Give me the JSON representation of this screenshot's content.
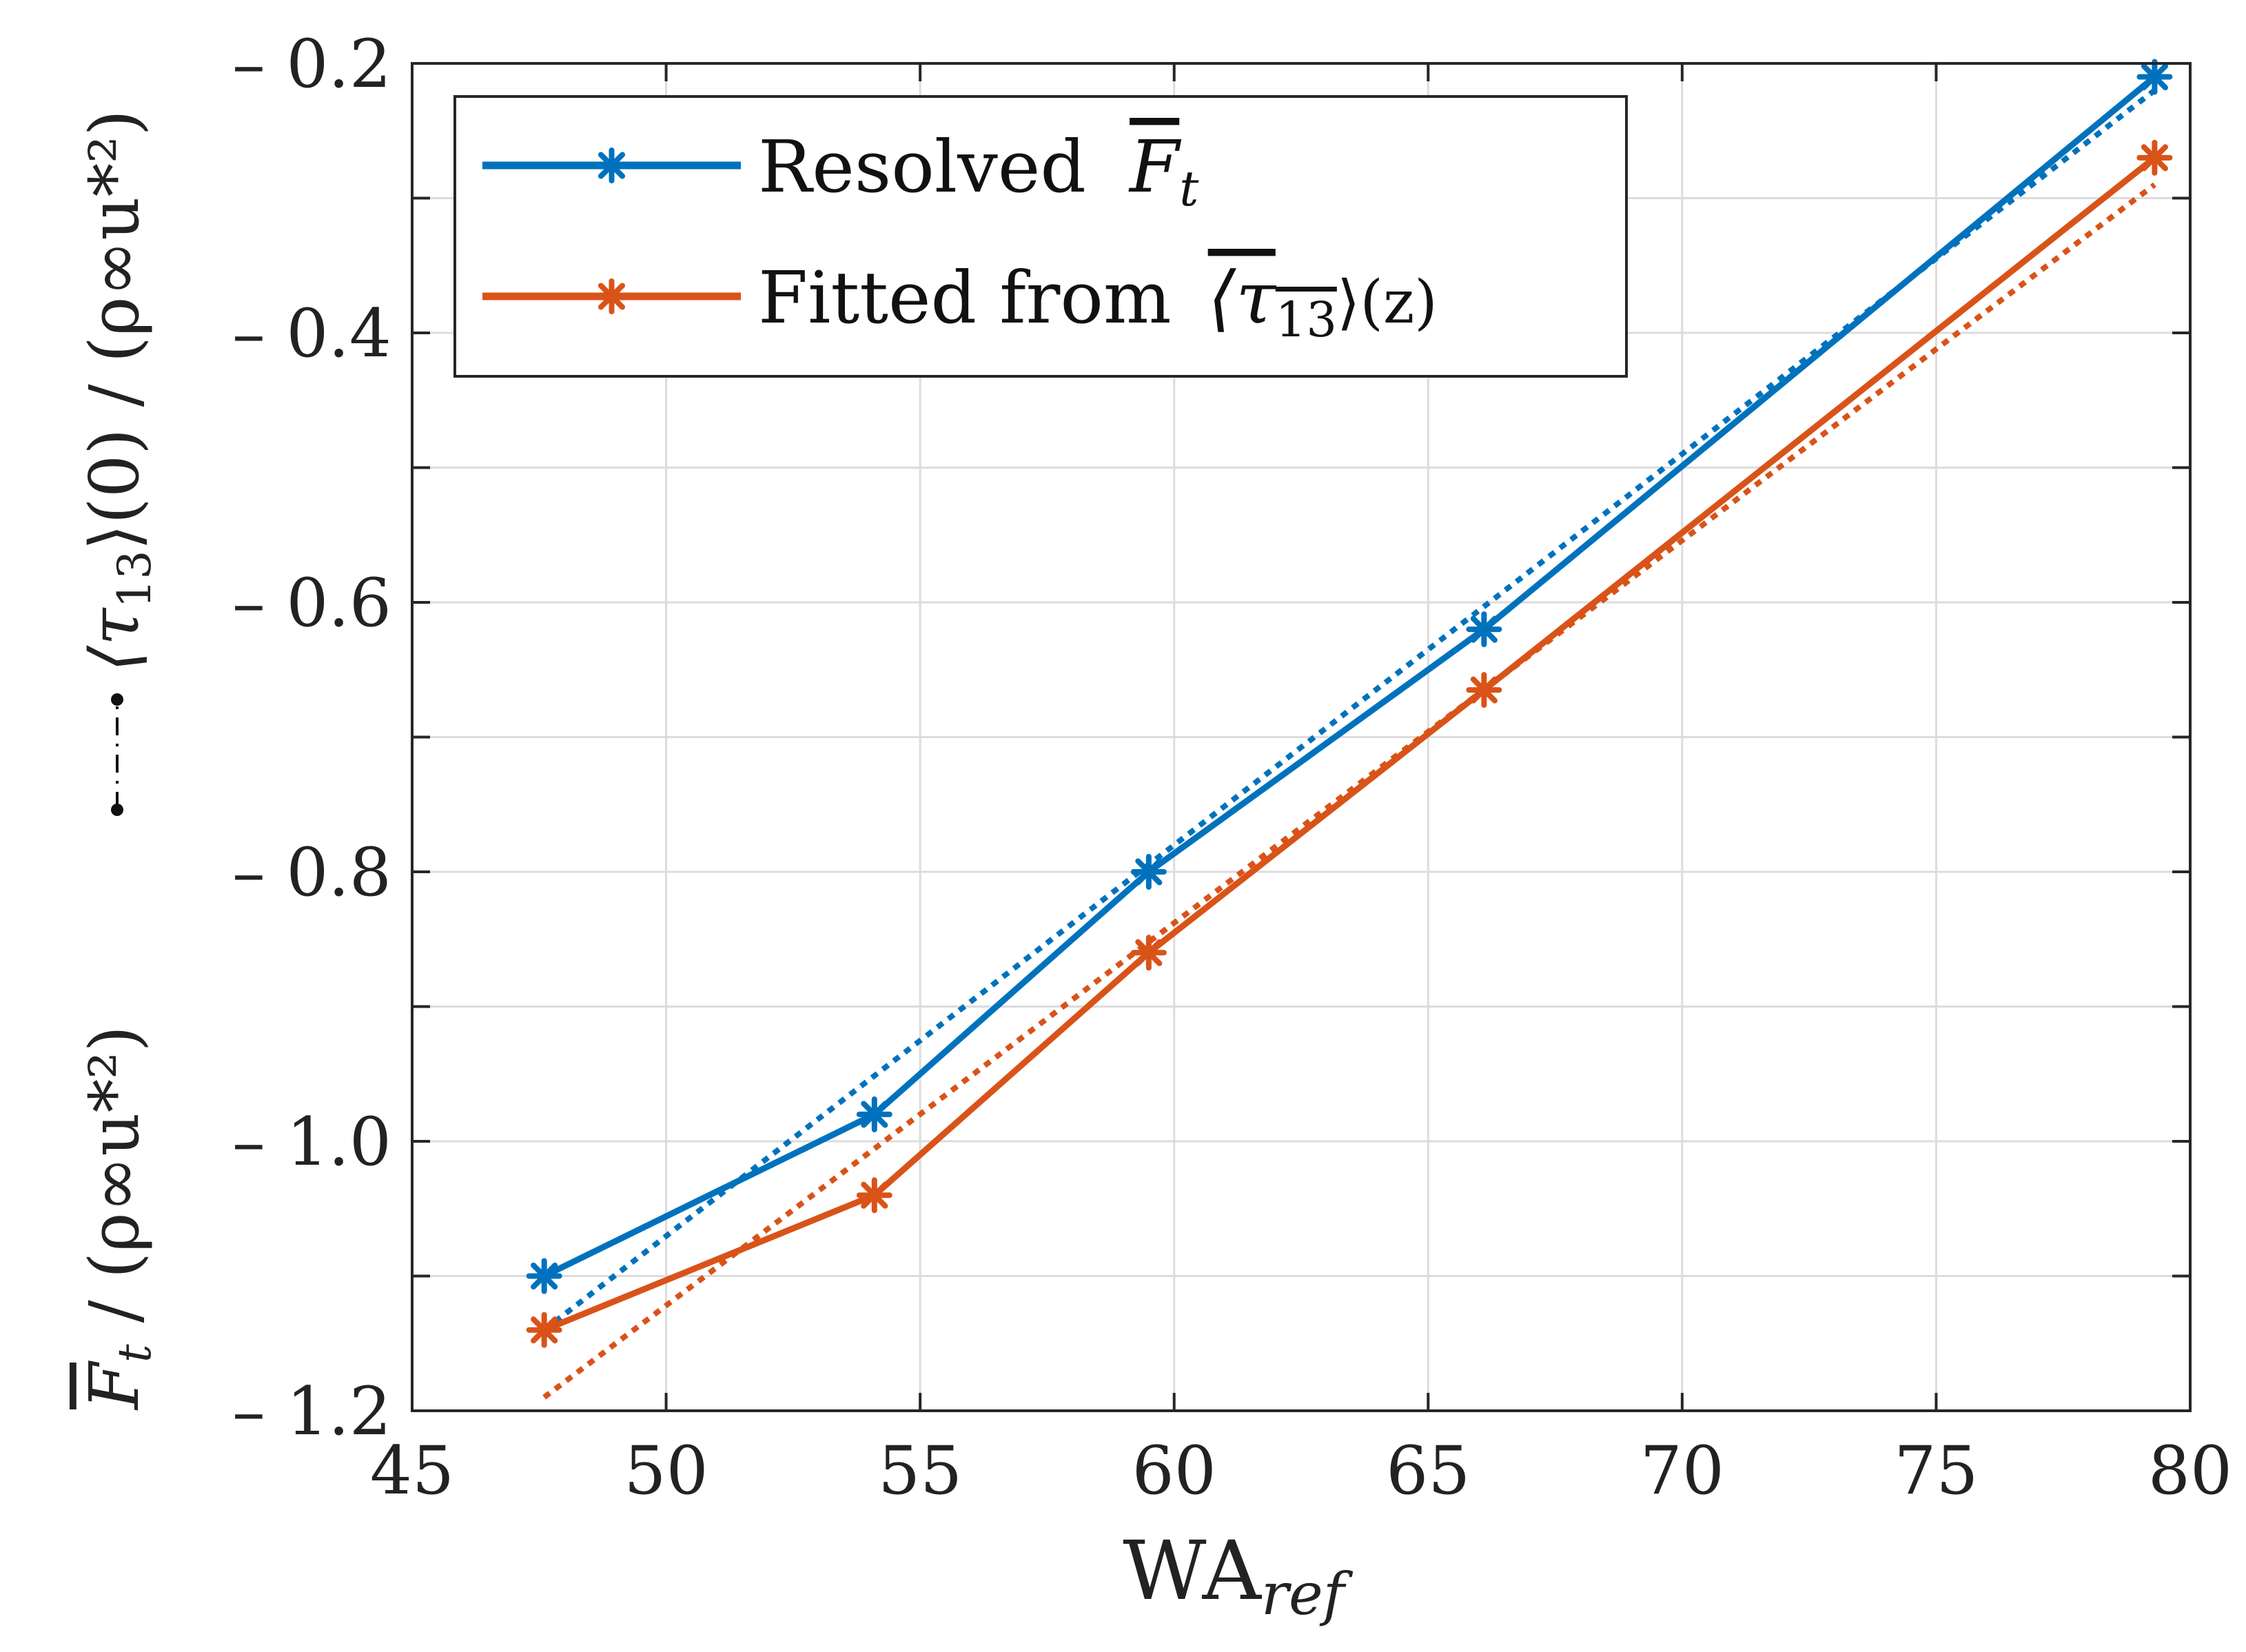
{
  "chart_data": {
    "type": "line",
    "title": "",
    "xlabel": "WA",
    "xlabel_sub": "ref",
    "ylabel_left": {
      "part1_bar": "F",
      "part1_sub": "t",
      "part1_rest": " / (ρ∞u*²)",
      "part2_prefix": "⟨τ",
      "part2_sub": "13",
      "part2_rest": "⟩(0) / (ρ∞u*²)"
    },
    "xlim": [
      45,
      80
    ],
    "ylim": [
      -1.2,
      -0.2
    ],
    "x_ticks": [
      45,
      50,
      55,
      60,
      65,
      70,
      75,
      80
    ],
    "x_tick_labels": [
      "45",
      "50",
      "55",
      "60",
      "65",
      "70",
      "75",
      "80"
    ],
    "y_ticks": [
      -0.2,
      -0.4,
      -0.6,
      -0.8,
      -1.0,
      -1.2
    ],
    "y_tick_labels": [
      "– 0.2",
      "– 0.4",
      "– 0.6",
      "– 0.8",
      "– 1.0",
      "– 1.2"
    ],
    "y_grid": [
      -0.2,
      -0.3,
      -0.4,
      -0.5,
      -0.6,
      -0.7,
      -0.8,
      -0.9,
      -1.0,
      -1.1,
      -1.2
    ],
    "grid": true,
    "legend_position": "top-left",
    "series": [
      {
        "name": "Resolved",
        "legend_label": "Resolved",
        "legend_math": "F",
        "legend_math_sub": "t",
        "color": "#0072BD",
        "marker": "asterisk",
        "x": [
          47.6,
          54.1,
          59.5,
          66.1,
          79.3
        ],
        "values": [
          -1.1,
          -0.98,
          -0.8,
          -0.62,
          -0.21
        ],
        "fit_line": {
          "x": [
            47.6,
            79.3
          ],
          "values": [
            -1.14,
            -0.22
          ]
        }
      },
      {
        "name": "Fitted",
        "legend_label": "Fitted from",
        "legend_math": "⟨τ",
        "legend_math_sub": "13",
        "legend_math_rest": "⟩(z)",
        "color": "#D95319",
        "marker": "asterisk",
        "x": [
          47.6,
          54.1,
          59.5,
          66.1,
          79.3
        ],
        "values": [
          -1.14,
          -1.04,
          -0.86,
          -0.665,
          -0.27
        ],
        "fit_line": {
          "x": [
            47.6,
            79.3
          ],
          "values": [
            -1.19,
            -0.29
          ]
        }
      }
    ]
  }
}
